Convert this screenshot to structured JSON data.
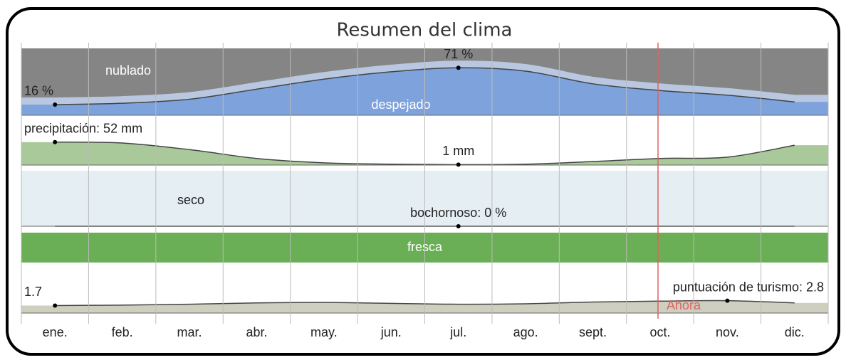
{
  "chart_data": {
    "type": "climate-summary",
    "title": "Resumen del clima",
    "categories": [
      "ene.",
      "feb.",
      "mar.",
      "abr.",
      "may.",
      "jun.",
      "jul.",
      "ago.",
      "sept.",
      "oct.",
      "nov.",
      "dic."
    ],
    "now_label": "Ahora",
    "cloud": {
      "name": "despejado",
      "top_label": "nublado",
      "color": "#7ea2dc",
      "sky_color": "#858585",
      "ylim": [
        0,
        100
      ],
      "values": [
        16,
        18,
        24,
        39,
        54,
        65,
        71,
        66,
        47,
        37,
        30,
        20
      ],
      "value_labels": [
        "16 %",
        null,
        null,
        null,
        null,
        null,
        "71 %",
        null,
        null,
        null,
        null,
        null
      ]
    },
    "precipitation": {
      "color": "#a9c99a",
      "ylim": [
        0,
        100
      ],
      "values": [
        52,
        50,
        35,
        15,
        5,
        2,
        1,
        2,
        8,
        15,
        18,
        45
      ],
      "value_labels": [
        "precipitación: 52 mm",
        null,
        null,
        null,
        null,
        null,
        "1 mm",
        null,
        null,
        null,
        null,
        null
      ]
    },
    "humidity": {
      "band_label": "seco",
      "color": "#e4eef3",
      "ylim": [
        0,
        100
      ],
      "values": [
        0,
        0,
        0,
        0,
        0,
        0,
        0,
        0,
        0,
        0,
        0,
        0
      ],
      "value_labels": [
        null,
        null,
        null,
        null,
        null,
        null,
        "bochornoso: 0 %",
        null,
        null,
        null,
        null,
        null
      ]
    },
    "temperature": {
      "band_label": "fresca",
      "color": "#6aaf55"
    },
    "tourism": {
      "color": "#cfcfc0",
      "ylim": [
        0,
        10
      ],
      "values": [
        1.7,
        1.8,
        2.0,
        2.3,
        2.4,
        2.2,
        2.0,
        2.1,
        2.5,
        2.7,
        2.8,
        2.3
      ],
      "value_labels": [
        "1.7",
        null,
        null,
        null,
        null,
        null,
        null,
        null,
        null,
        null,
        "puntuación de turismo: 2.8",
        null
      ]
    }
  }
}
